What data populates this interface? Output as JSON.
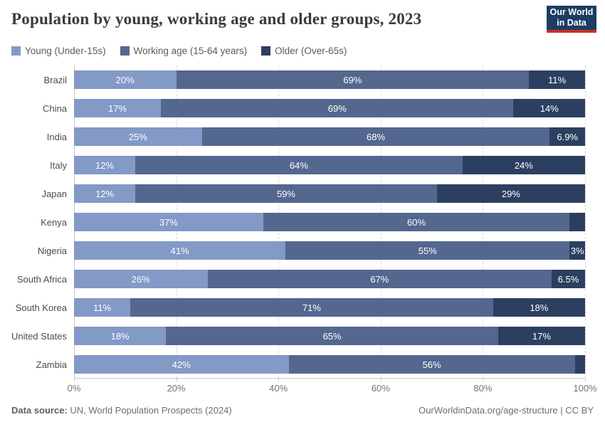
{
  "header": {
    "title": "Population by young, working age and older groups, 2023",
    "logo": {
      "line1": "Our World",
      "line2": "in Data",
      "bg_color": "#1d3d63",
      "accent_color": "#cb3025"
    }
  },
  "legend": [
    {
      "label": "Young (Under-15s)",
      "color": "#8399c6"
    },
    {
      "label": "Working age (15-64 years)",
      "color": "#54678e"
    },
    {
      "label": "Older (Over-65s)",
      "color": "#2c3f60"
    }
  ],
  "chart_data": {
    "type": "bar",
    "orientation": "horizontal",
    "stacked": true,
    "title": "Population by young, working age and older groups, 2023",
    "categories": [
      "Brazil",
      "China",
      "India",
      "Italy",
      "Japan",
      "Kenya",
      "Nigeria",
      "South Africa",
      "South Korea",
      "United States",
      "Zambia"
    ],
    "series": [
      {
        "name": "Young (Under-15s)",
        "color": "#8399c6",
        "values": [
          20,
          17,
          25,
          12,
          12,
          37,
          41,
          26,
          11,
          18,
          42
        ],
        "labels": [
          "20%",
          "17%",
          "25%",
          "12%",
          "12%",
          "37%",
          "41%",
          "26%",
          "11%",
          "18%",
          "42%"
        ]
      },
      {
        "name": "Working age (15-64 years)",
        "color": "#54678e",
        "values": [
          69,
          69,
          68,
          64,
          59,
          60,
          55,
          67,
          71,
          65,
          56
        ],
        "labels": [
          "69%",
          "69%",
          "68%",
          "64%",
          "59%",
          "60%",
          "55%",
          "67%",
          "71%",
          "65%",
          "56%"
        ]
      },
      {
        "name": "Older (Over-65s)",
        "color": "#2c3f60",
        "values": [
          11,
          14,
          6.9,
          24,
          29,
          3,
          3,
          6.5,
          18,
          17,
          2
        ],
        "labels": [
          "11%",
          "14%",
          "6.9%",
          "24%",
          "29%",
          "",
          "3%",
          "6.5%",
          "18%",
          "17%",
          ""
        ]
      }
    ],
    "x_ticks": [
      "0%",
      "20%",
      "40%",
      "60%",
      "80%",
      "100%"
    ],
    "x_tick_values": [
      0,
      20,
      40,
      60,
      80,
      100
    ],
    "xlim": [
      0,
      100
    ],
    "grid": "dashed-vertical",
    "legend_position": "top"
  },
  "footer": {
    "source_label": "Data source:",
    "source_text": " UN, World Population Prospects (2024)",
    "credit": "OurWorldinData.org/age-structure | CC BY"
  }
}
